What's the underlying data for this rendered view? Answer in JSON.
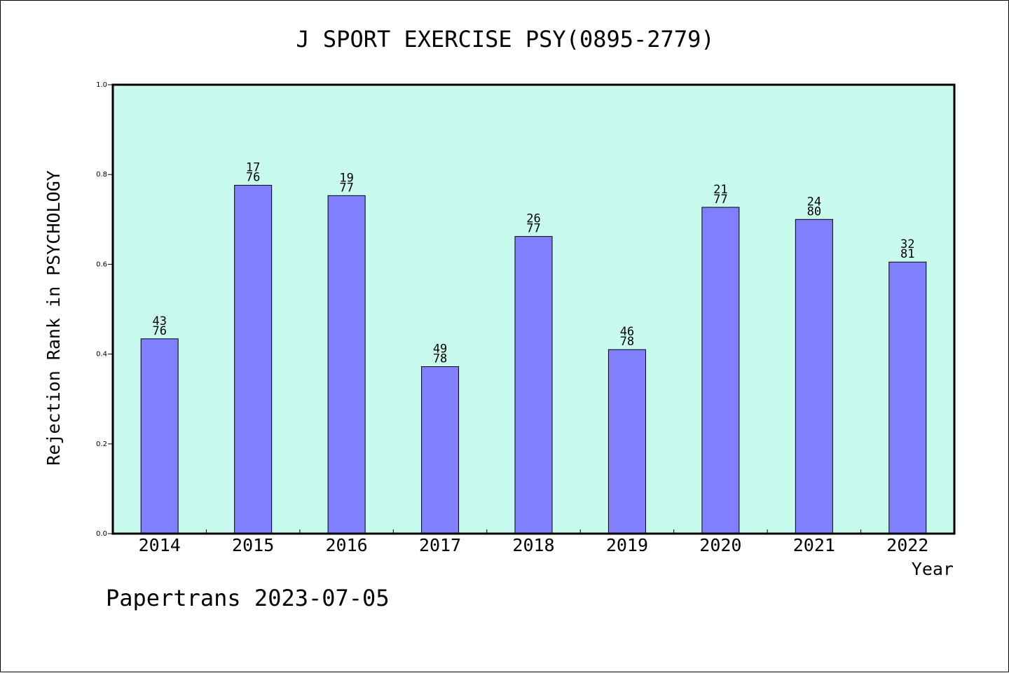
{
  "chart_data": {
    "type": "bar",
    "title": "J SPORT EXERCISE PSY(0895-2779)",
    "xlabel": "Year",
    "ylabel": "Rejection Rank in PSYCHOLOGY",
    "footer": "Papertrans 2023-07-05",
    "ylim": [
      0,
      1.0
    ],
    "yticks": [
      "0.0",
      "0.2",
      "0.4",
      "0.6",
      "0.8",
      "1.0"
    ],
    "grid": false,
    "categories": [
      "2014",
      "2015",
      "2016",
      "2017",
      "2018",
      "2019",
      "2020",
      "2021",
      "2022"
    ],
    "values": [
      0.434,
      0.776,
      0.753,
      0.372,
      0.662,
      0.41,
      0.727,
      0.7,
      0.605
    ],
    "labels_top": [
      "43",
      "17",
      "19",
      "49",
      "26",
      "46",
      "21",
      "24",
      "32"
    ],
    "labels_bottom": [
      "76",
      "76",
      "77",
      "78",
      "77",
      "78",
      "77",
      "80",
      "81"
    ],
    "colors": {
      "plot_bg": "#c8fbee",
      "bar": "#8080ff",
      "bar_edge": "#000000",
      "text": "#000000"
    }
  }
}
